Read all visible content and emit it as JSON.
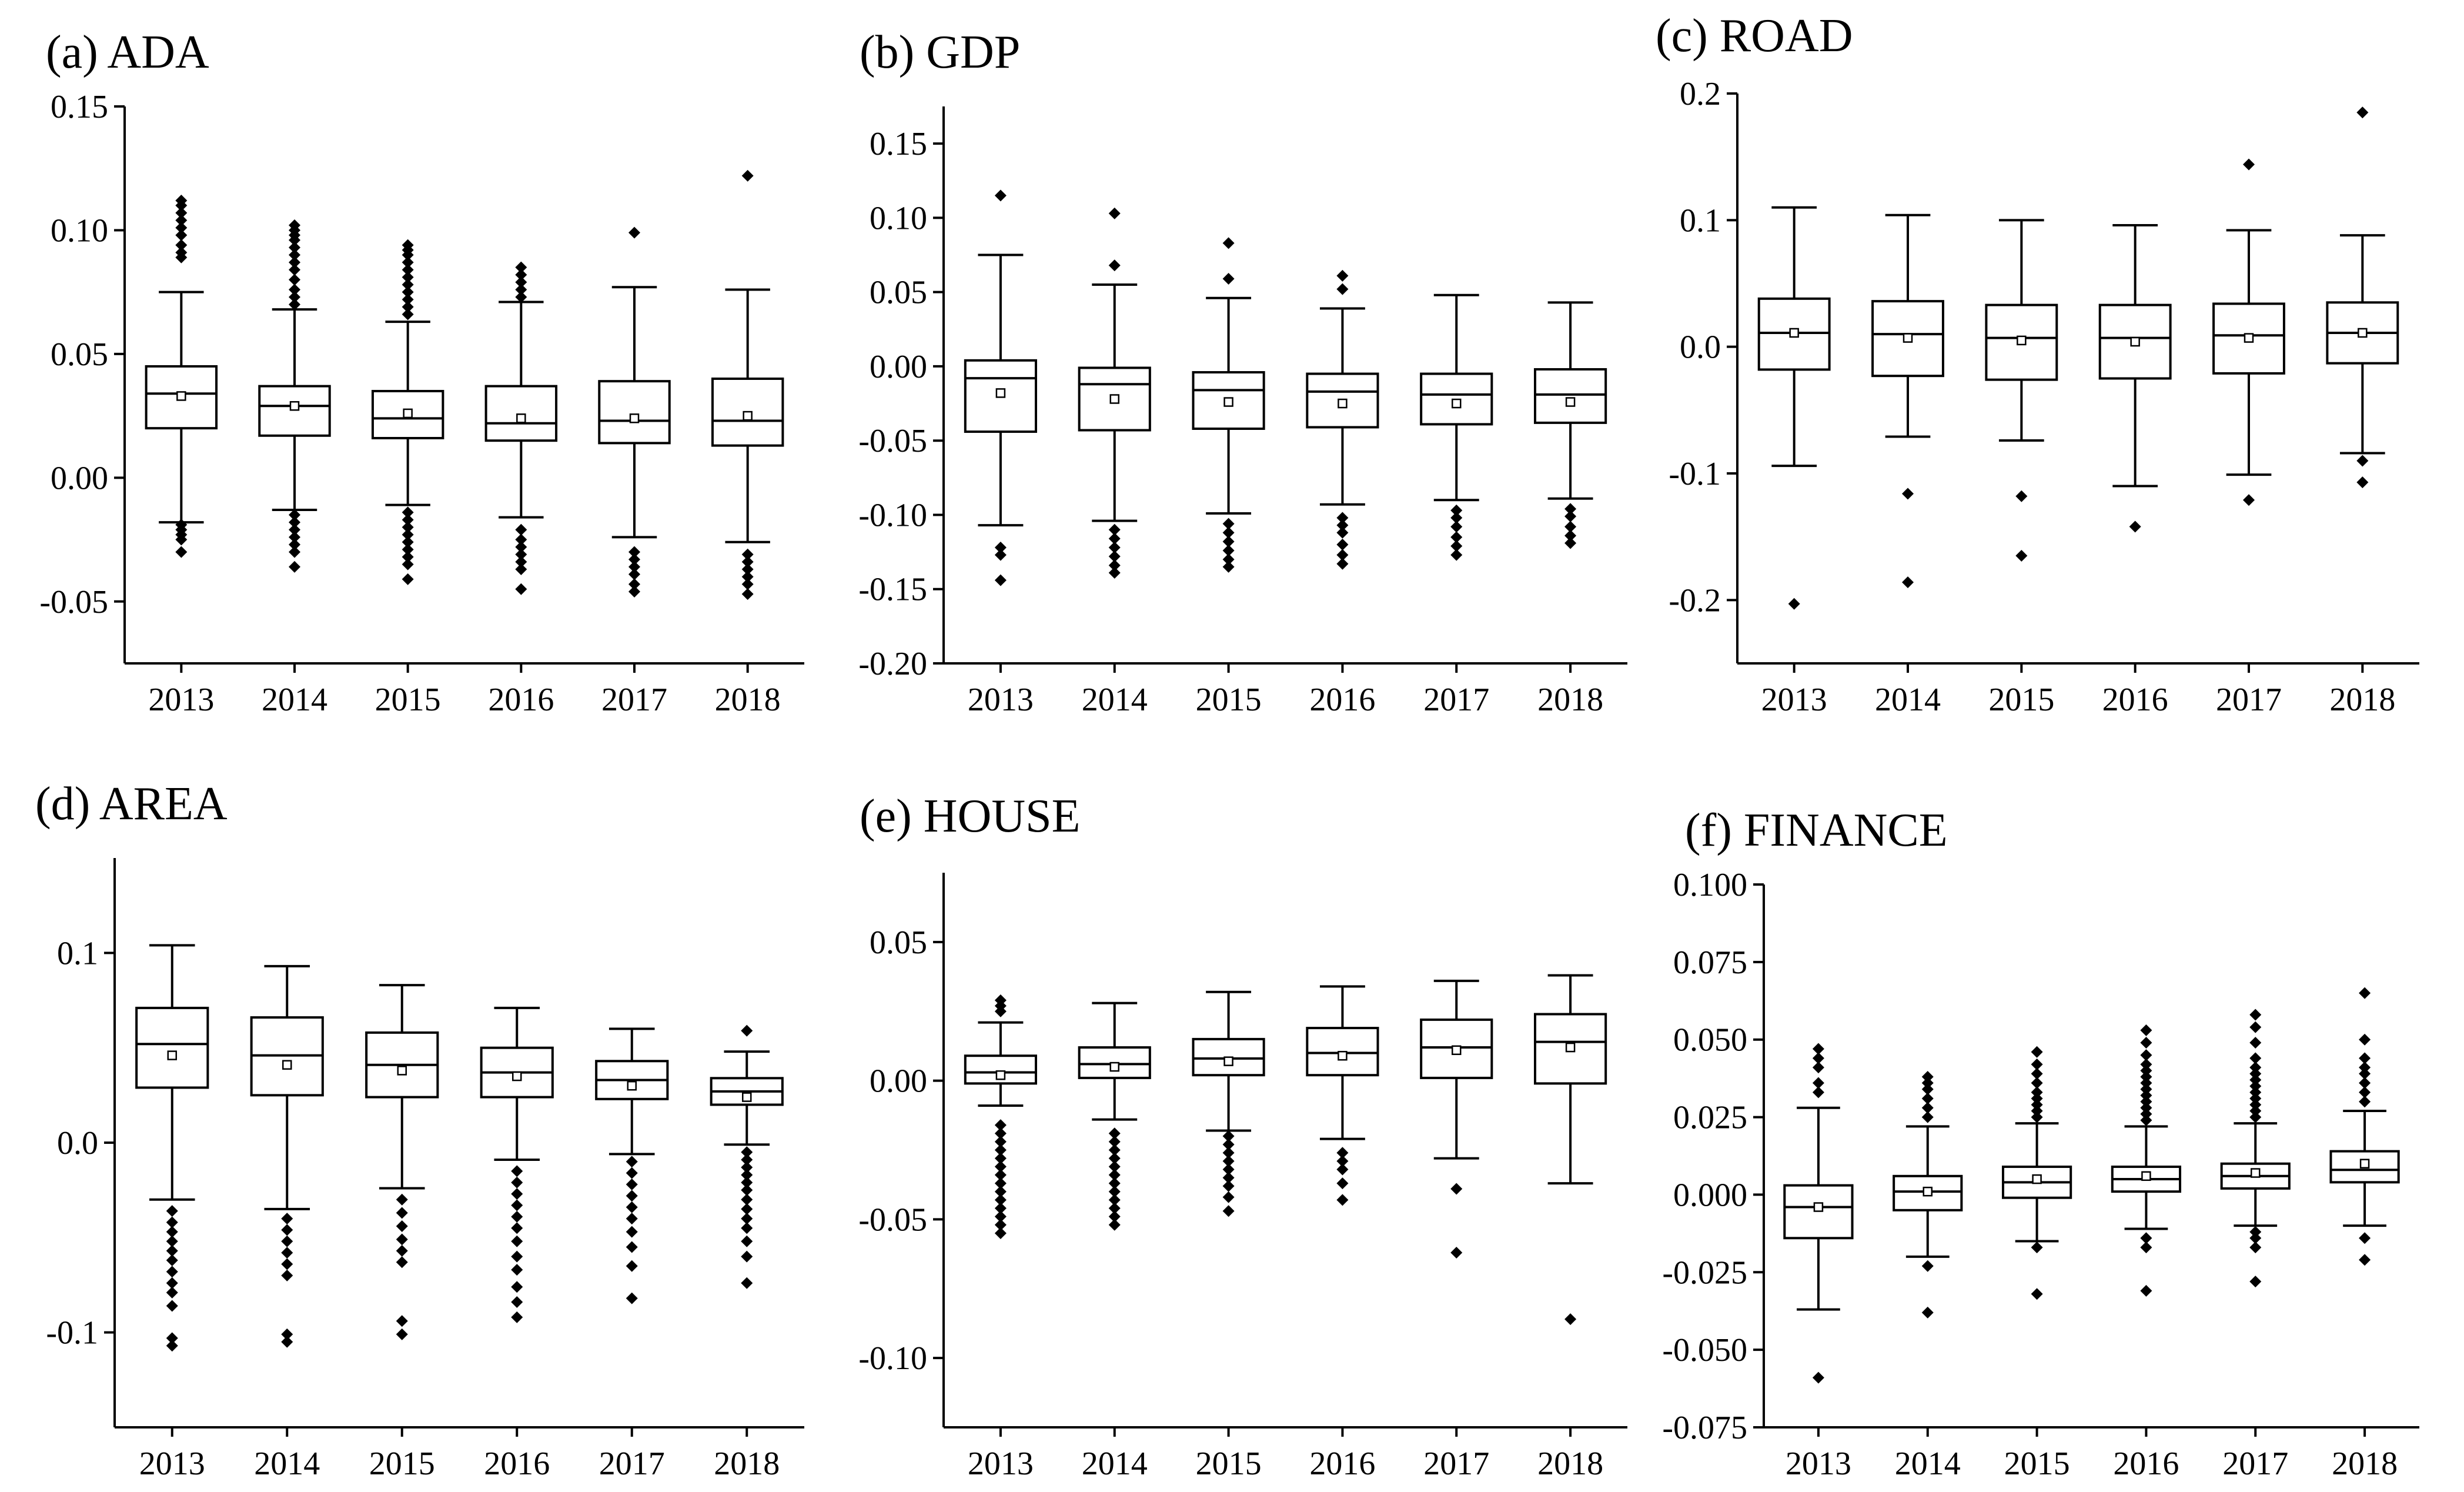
{
  "chart_data": [
    {
      "id": "a",
      "title": "(a) ADA",
      "type": "box",
      "categories": [
        "2013",
        "2014",
        "2015",
        "2016",
        "2017",
        "2018"
      ],
      "ylim": [
        -0.075,
        0.15
      ],
      "yticks": [
        -0.05,
        0.0,
        0.05,
        0.1,
        0.15
      ],
      "yticklabels": [
        "-0.05",
        "0.00",
        "0.05",
        "0.10",
        "0.15"
      ],
      "boxes": [
        {
          "whisker_low": -0.018,
          "q1": 0.02,
          "median": 0.034,
          "q3": 0.045,
          "whisker_high": 0.075,
          "mean": 0.033,
          "outliers": [
            0.112,
            0.11,
            0.107,
            0.104,
            0.101,
            0.098,
            0.094,
            0.091,
            0.089,
            -0.019,
            -0.021,
            -0.023,
            -0.025,
            -0.03
          ]
        },
        {
          "whisker_low": -0.013,
          "q1": 0.017,
          "median": 0.029,
          "q3": 0.037,
          "whisker_high": 0.068,
          "mean": 0.029,
          "outliers": [
            0.102,
            0.1,
            0.098,
            0.096,
            0.093,
            0.09,
            0.087,
            0.084,
            0.08,
            0.076,
            0.073,
            0.07,
            -0.015,
            -0.018,
            -0.021,
            -0.024,
            -0.027,
            -0.03,
            -0.036
          ]
        },
        {
          "whisker_low": -0.011,
          "q1": 0.016,
          "median": 0.024,
          "q3": 0.035,
          "whisker_high": 0.063,
          "mean": 0.026,
          "outliers": [
            0.094,
            0.092,
            0.09,
            0.087,
            0.084,
            0.081,
            0.078,
            0.075,
            0.072,
            0.069,
            0.066,
            -0.014,
            -0.017,
            -0.02,
            -0.023,
            -0.026,
            -0.029,
            -0.032,
            -0.035,
            -0.041
          ]
        },
        {
          "whisker_low": -0.016,
          "q1": 0.015,
          "median": 0.022,
          "q3": 0.037,
          "whisker_high": 0.071,
          "mean": 0.024,
          "outliers": [
            0.085,
            0.082,
            0.079,
            0.076,
            0.073,
            -0.021,
            -0.025,
            -0.028,
            -0.031,
            -0.034,
            -0.037,
            -0.045
          ]
        },
        {
          "whisker_low": -0.024,
          "q1": 0.014,
          "median": 0.023,
          "q3": 0.039,
          "whisker_high": 0.077,
          "mean": 0.024,
          "outliers": [
            0.099,
            -0.03,
            -0.033,
            -0.036,
            -0.039,
            -0.043,
            -0.046
          ]
        },
        {
          "whisker_low": -0.026,
          "q1": 0.013,
          "median": 0.023,
          "q3": 0.04,
          "whisker_high": 0.076,
          "mean": 0.025,
          "outliers": [
            0.122,
            -0.031,
            -0.034,
            -0.037,
            -0.04,
            -0.043,
            -0.047
          ]
        }
      ]
    },
    {
      "id": "b",
      "title": "(b) GDP",
      "type": "box",
      "categories": [
        "2013",
        "2014",
        "2015",
        "2016",
        "2017",
        "2018"
      ],
      "ylim": [
        -0.2,
        0.175
      ],
      "yticks": [
        -0.2,
        -0.15,
        -0.1,
        -0.05,
        0.0,
        0.05,
        0.1,
        0.15
      ],
      "yticklabels": [
        "-0.20",
        "-0.15",
        "-0.10",
        "-0.05",
        "0.00",
        "0.05",
        "0.10",
        "0.15"
      ],
      "boxes": [
        {
          "whisker_low": -0.107,
          "q1": -0.044,
          "median": -0.008,
          "q3": 0.004,
          "whisker_high": 0.075,
          "mean": -0.018,
          "outliers": [
            0.115,
            -0.122,
            -0.127,
            -0.144
          ]
        },
        {
          "whisker_low": -0.104,
          "q1": -0.043,
          "median": -0.012,
          "q3": -0.001,
          "whisker_high": 0.055,
          "mean": -0.022,
          "outliers": [
            0.103,
            0.068,
            -0.11,
            -0.116,
            -0.122,
            -0.128,
            -0.134,
            -0.139
          ]
        },
        {
          "whisker_low": -0.099,
          "q1": -0.042,
          "median": -0.016,
          "q3": -0.004,
          "whisker_high": 0.046,
          "mean": -0.024,
          "outliers": [
            0.083,
            0.059,
            -0.106,
            -0.112,
            -0.118,
            -0.124,
            -0.13,
            -0.135
          ]
        },
        {
          "whisker_low": -0.093,
          "q1": -0.041,
          "median": -0.017,
          "q3": -0.005,
          "whisker_high": 0.039,
          "mean": -0.025,
          "outliers": [
            0.061,
            0.052,
            -0.102,
            -0.107,
            -0.112,
            -0.12,
            -0.127,
            -0.133
          ]
        },
        {
          "whisker_low": -0.09,
          "q1": -0.039,
          "median": -0.019,
          "q3": -0.005,
          "whisker_high": 0.048,
          "mean": -0.025,
          "outliers": [
            -0.097,
            -0.102,
            -0.108,
            -0.115,
            -0.121,
            -0.127
          ]
        },
        {
          "whisker_low": -0.089,
          "q1": -0.038,
          "median": -0.019,
          "q3": -0.002,
          "whisker_high": 0.043,
          "mean": -0.024,
          "outliers": [
            -0.096,
            -0.101,
            -0.108,
            -0.114,
            -0.119
          ]
        }
      ]
    },
    {
      "id": "c",
      "title": "(c) ROAD",
      "type": "box",
      "categories": [
        "2013",
        "2014",
        "2015",
        "2016",
        "2017",
        "2018"
      ],
      "ylim": [
        -0.25,
        0.2
      ],
      "yticks": [
        -0.2,
        -0.1,
        0.0,
        0.1,
        0.2
      ],
      "yticklabels": [
        "-0.2",
        "-0.1",
        "0.0",
        "0.1",
        "0.2"
      ],
      "boxes": [
        {
          "whisker_low": -0.094,
          "q1": -0.018,
          "median": 0.011,
          "q3": 0.038,
          "whisker_high": 0.11,
          "mean": 0.011,
          "outliers": [
            -0.203
          ]
        },
        {
          "whisker_low": -0.071,
          "q1": -0.023,
          "median": 0.01,
          "q3": 0.036,
          "whisker_high": 0.104,
          "mean": 0.007,
          "outliers": [
            -0.116,
            -0.186
          ]
        },
        {
          "whisker_low": -0.074,
          "q1": -0.026,
          "median": 0.007,
          "q3": 0.033,
          "whisker_high": 0.1,
          "mean": 0.005,
          "outliers": [
            -0.118,
            -0.165
          ]
        },
        {
          "whisker_low": -0.11,
          "q1": -0.025,
          "median": 0.007,
          "q3": 0.033,
          "whisker_high": 0.096,
          "mean": 0.004,
          "outliers": [
            -0.142
          ]
        },
        {
          "whisker_low": -0.101,
          "q1": -0.021,
          "median": 0.009,
          "q3": 0.034,
          "whisker_high": 0.092,
          "mean": 0.007,
          "outliers": [
            0.144,
            -0.121
          ]
        },
        {
          "whisker_low": -0.084,
          "q1": -0.013,
          "median": 0.011,
          "q3": 0.035,
          "whisker_high": 0.088,
          "mean": 0.011,
          "outliers": [
            0.185,
            -0.09,
            -0.107
          ]
        }
      ]
    },
    {
      "id": "d",
      "title": "(d) AREA",
      "type": "box",
      "categories": [
        "2013",
        "2014",
        "2015",
        "2016",
        "2017",
        "2018"
      ],
      "ylim": [
        -0.15,
        0.15
      ],
      "yticks": [
        -0.1,
        0.0,
        0.1
      ],
      "yticklabels": [
        "-0.1",
        "0.0",
        "0.1"
      ],
      "boxes": [
        {
          "whisker_low": -0.03,
          "q1": 0.029,
          "median": 0.052,
          "q3": 0.071,
          "whisker_high": 0.104,
          "mean": 0.046,
          "outliers": [
            -0.036,
            -0.042,
            -0.047,
            -0.052,
            -0.057,
            -0.062,
            -0.068,
            -0.074,
            -0.079,
            -0.086,
            -0.103,
            -0.107
          ]
        },
        {
          "whisker_low": -0.035,
          "q1": 0.025,
          "median": 0.046,
          "q3": 0.066,
          "whisker_high": 0.093,
          "mean": 0.041,
          "outliers": [
            -0.04,
            -0.046,
            -0.052,
            -0.058,
            -0.064,
            -0.07,
            -0.101,
            -0.105
          ]
        },
        {
          "whisker_low": -0.024,
          "q1": 0.024,
          "median": 0.041,
          "q3": 0.058,
          "whisker_high": 0.083,
          "mean": 0.038,
          "outliers": [
            -0.03,
            -0.037,
            -0.044,
            -0.051,
            -0.057,
            -0.063,
            -0.094,
            -0.101
          ]
        },
        {
          "whisker_low": -0.009,
          "q1": 0.024,
          "median": 0.037,
          "q3": 0.05,
          "whisker_high": 0.071,
          "mean": 0.035,
          "outliers": [
            -0.015,
            -0.021,
            -0.027,
            -0.033,
            -0.039,
            -0.045,
            -0.052,
            -0.06,
            -0.067,
            -0.076,
            -0.084,
            -0.092
          ]
        },
        {
          "whisker_low": -0.006,
          "q1": 0.023,
          "median": 0.033,
          "q3": 0.043,
          "whisker_high": 0.06,
          "mean": 0.03,
          "outliers": [
            -0.01,
            -0.016,
            -0.022,
            -0.028,
            -0.034,
            -0.04,
            -0.047,
            -0.055,
            -0.065,
            -0.082
          ]
        },
        {
          "whisker_low": -0.001,
          "q1": 0.02,
          "median": 0.027,
          "q3": 0.034,
          "whisker_high": 0.048,
          "mean": 0.024,
          "outliers": [
            0.059,
            -0.005,
            -0.009,
            -0.013,
            -0.017,
            -0.021,
            -0.025,
            -0.03,
            -0.035,
            -0.04,
            -0.045,
            -0.052,
            -0.06,
            -0.074
          ]
        }
      ]
    },
    {
      "id": "e",
      "title": "(e) HOUSE",
      "type": "box",
      "categories": [
        "2013",
        "2014",
        "2015",
        "2016",
        "2017",
        "2018"
      ],
      "ylim": [
        -0.125,
        0.075
      ],
      "yticks": [
        -0.1,
        -0.05,
        0.0,
        0.05
      ],
      "yticklabels": [
        "-0.10",
        "-0.05",
        "0.00",
        "0.05"
      ],
      "boxes": [
        {
          "whisker_low": -0.009,
          "q1": -0.001,
          "median": 0.003,
          "q3": 0.009,
          "whisker_high": 0.021,
          "mean": 0.002,
          "outliers": [
            0.029,
            0.027,
            0.025,
            -0.016,
            -0.019,
            -0.022,
            -0.025,
            -0.028,
            -0.031,
            -0.034,
            -0.037,
            -0.04,
            -0.043,
            -0.046,
            -0.049,
            -0.052,
            -0.055
          ]
        },
        {
          "whisker_low": -0.014,
          "q1": 0.001,
          "median": 0.006,
          "q3": 0.012,
          "whisker_high": 0.028,
          "mean": 0.005,
          "outliers": [
            -0.019,
            -0.022,
            -0.025,
            -0.028,
            -0.031,
            -0.034,
            -0.037,
            -0.04,
            -0.043,
            -0.046,
            -0.049,
            -0.052
          ]
        },
        {
          "whisker_low": -0.018,
          "q1": 0.002,
          "median": 0.008,
          "q3": 0.015,
          "whisker_high": 0.032,
          "mean": 0.007,
          "outliers": [
            -0.02,
            -0.023,
            -0.026,
            -0.029,
            -0.032,
            -0.035,
            -0.038,
            -0.042,
            -0.047
          ]
        },
        {
          "whisker_low": -0.021,
          "q1": 0.002,
          "median": 0.01,
          "q3": 0.019,
          "whisker_high": 0.034,
          "mean": 0.009,
          "outliers": [
            -0.026,
            -0.029,
            -0.032,
            -0.037,
            -0.043
          ]
        },
        {
          "whisker_low": -0.028,
          "q1": 0.001,
          "median": 0.012,
          "q3": 0.022,
          "whisker_high": 0.036,
          "mean": 0.011,
          "outliers": [
            -0.039,
            -0.062
          ]
        },
        {
          "whisker_low": -0.037,
          "q1": -0.001,
          "median": 0.014,
          "q3": 0.024,
          "whisker_high": 0.038,
          "mean": 0.012,
          "outliers": [
            -0.086
          ]
        }
      ]
    },
    {
      "id": "f",
      "title": "(f) FINANCE",
      "type": "box",
      "categories": [
        "2013",
        "2014",
        "2015",
        "2016",
        "2017",
        "2018"
      ],
      "ylim": [
        -0.075,
        0.1
      ],
      "yticks": [
        -0.075,
        -0.05,
        -0.025,
        0.0,
        0.025,
        0.05,
        0.075,
        0.1
      ],
      "yticklabels": [
        "-0.075",
        "-0.050",
        "-0.025",
        "0.000",
        "0.025",
        "0.050",
        "0.075",
        "0.100"
      ],
      "boxes": [
        {
          "whisker_low": -0.037,
          "q1": -0.014,
          "median": -0.004,
          "q3": 0.003,
          "whisker_high": 0.028,
          "mean": -0.004,
          "outliers": [
            0.033,
            0.036,
            0.041,
            0.044,
            0.047,
            -0.059
          ]
        },
        {
          "whisker_low": -0.02,
          "q1": -0.005,
          "median": 0.001,
          "q3": 0.006,
          "whisker_high": 0.022,
          "mean": 0.001,
          "outliers": [
            0.025,
            0.028,
            0.031,
            0.034,
            0.036,
            0.038,
            -0.023,
            -0.038
          ]
        },
        {
          "whisker_low": -0.015,
          "q1": -0.001,
          "median": 0.004,
          "q3": 0.009,
          "whisker_high": 0.023,
          "mean": 0.005,
          "outliers": [
            0.025,
            0.027,
            0.029,
            0.031,
            0.033,
            0.036,
            0.039,
            0.042,
            0.046,
            -0.017,
            -0.032
          ]
        },
        {
          "whisker_low": -0.011,
          "q1": 0.001,
          "median": 0.005,
          "q3": 0.009,
          "whisker_high": 0.022,
          "mean": 0.006,
          "outliers": [
            0.024,
            0.026,
            0.028,
            0.03,
            0.032,
            0.034,
            0.036,
            0.038,
            0.04,
            0.042,
            0.045,
            0.049,
            0.053,
            -0.014,
            -0.017,
            -0.031
          ]
        },
        {
          "whisker_low": -0.01,
          "q1": 0.002,
          "median": 0.006,
          "q3": 0.01,
          "whisker_high": 0.023,
          "mean": 0.007,
          "outliers": [
            0.025,
            0.027,
            0.029,
            0.031,
            0.033,
            0.035,
            0.037,
            0.039,
            0.041,
            0.044,
            0.049,
            0.054,
            0.058,
            -0.012,
            -0.014,
            -0.017,
            -0.028
          ]
        },
        {
          "whisker_low": -0.01,
          "q1": 0.004,
          "median": 0.008,
          "q3": 0.014,
          "whisker_high": 0.027,
          "mean": 0.01,
          "outliers": [
            0.03,
            0.033,
            0.036,
            0.039,
            0.041,
            0.044,
            0.05,
            0.065,
            -0.014,
            -0.021
          ]
        }
      ]
    }
  ]
}
